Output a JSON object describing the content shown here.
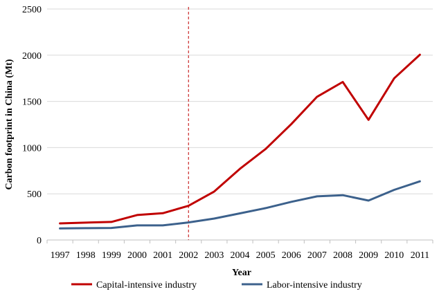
{
  "chart_data": {
    "type": "line",
    "categories": [
      "1997",
      "1998",
      "1999",
      "2000",
      "2001",
      "2002",
      "2003",
      "2004",
      "2005",
      "2006",
      "2007",
      "2008",
      "2009",
      "2010",
      "2011"
    ],
    "series": [
      {
        "name": "Capital-intensive industry",
        "color": "#C00000",
        "values": [
          180,
          188,
          195,
          270,
          290,
          370,
          525,
          770,
          985,
          1255,
          1550,
          1710,
          1300,
          1750,
          2005
        ]
      },
      {
        "name": "Labor-intensive industry",
        "color": "#3C618C",
        "values": [
          125,
          128,
          130,
          158,
          158,
          190,
          232,
          288,
          345,
          413,
          472,
          485,
          427,
          543,
          635
        ]
      }
    ],
    "title": "",
    "xlabel": "Year",
    "ylabel": "Carbon footprint in China (Mt)",
    "ylim": [
      0,
      2500
    ],
    "yticks": [
      "0",
      "500",
      "1000",
      "1500",
      "2000",
      "2500"
    ],
    "grid": true,
    "legend_position": "bottom",
    "marker_line": {
      "x": "2002",
      "color": "#C00000",
      "style": "dashed"
    }
  }
}
